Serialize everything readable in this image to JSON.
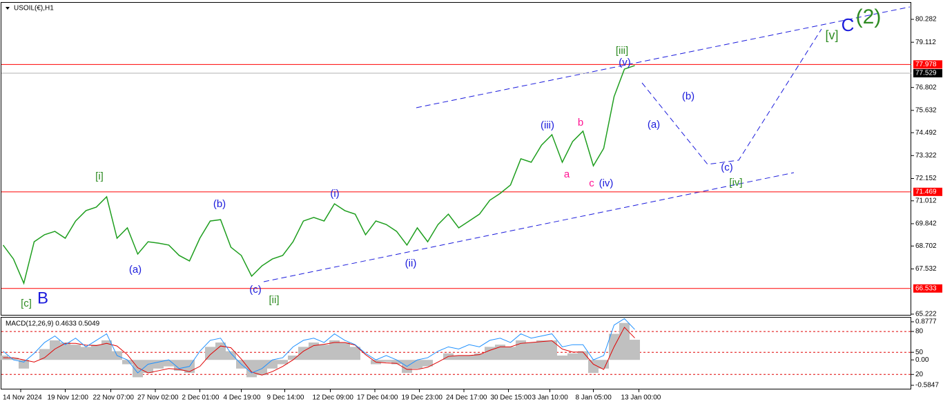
{
  "chart_data": [
    {
      "type": "line",
      "title": "USOIL(€),H1",
      "x": [
        0.3,
        1.3,
        2.3,
        3.3,
        4.3,
        5.3,
        6.3,
        7.3,
        8.3,
        9.3,
        10.3,
        11.3,
        12.3,
        13.3,
        14.3,
        15.3,
        16.3,
        17.3,
        18.3,
        19.3,
        20.3,
        21.3,
        22.3,
        23.3,
        24.3,
        25.3,
        26.3,
        27.3,
        28.3,
        29.3,
        30.3,
        31.3,
        32.3,
        33.3,
        34.3,
        35.3,
        36.3,
        37.3,
        38.3,
        39.3,
        40.3,
        41.3,
        42.3,
        43.3,
        44.3,
        45.3,
        46.3,
        47.3,
        48.3,
        49.3,
        50.3,
        51.3,
        52.3,
        53.3,
        54.3,
        55.3,
        56.3,
        57.3,
        58.3,
        59.3,
        60.3,
        61.3
      ],
      "series": [
        {
          "color": "#1e9e1e",
          "values": [
            68.75,
            68.04,
            66.8,
            68.92,
            69.28,
            69.45,
            69.1,
            69.98,
            70.51,
            70.69,
            71.22,
            69.1,
            69.63,
            68.29,
            68.92,
            68.85,
            68.75,
            68.22,
            67.94,
            69.1,
            69.98,
            70.05,
            68.64,
            68.22,
            67.16,
            67.69,
            68.04,
            68.22,
            68.92,
            69.98,
            70.16,
            69.98,
            70.86,
            70.51,
            70.33,
            69.28,
            69.98,
            69.8,
            69.45,
            68.75,
            69.63,
            68.92,
            69.8,
            70.33,
            69.63,
            69.98,
            70.33,
            71.04,
            71.39,
            71.82,
            73.16,
            72.98,
            73.86,
            74.39,
            72.98,
            74.04,
            74.57,
            72.8,
            73.69,
            76.33,
            77.74,
            77.92
          ]
        }
      ],
      "xlim": [
        0,
        88
      ],
      "ylim": [
        65.15,
        81.27
      ],
      "yticks": [
        80.282,
        79.112,
        76.802,
        75.632,
        74.492,
        73.322,
        72.152,
        71.012,
        69.842,
        68.702,
        67.532,
        65.222
      ],
      "xticks": [
        {
          "value": 2,
          "label": "14 Nov 2024"
        },
        {
          "value": 6.3,
          "label": "19 Nov 12:00"
        },
        {
          "value": 10.7,
          "label": "22 Nov 07:00"
        },
        {
          "value": 15,
          "label": "27 Nov 02:00"
        },
        {
          "value": 19.3,
          "label": "2 Dec 01:00"
        },
        {
          "value": 23.3,
          "label": "4 Dec 19:00"
        },
        {
          "value": 27.5,
          "label": "9 Dec 14:00"
        },
        {
          "value": 31.9,
          "label": "12 Dec 09:00"
        },
        {
          "value": 36.2,
          "label": "17 Dec 04:00"
        },
        {
          "value": 40.5,
          "label": "19 Dec 23:00"
        },
        {
          "value": 44.8,
          "label": "24 Dec 17:00"
        },
        {
          "value": 49.1,
          "label": "30 Dec 15:00"
        },
        {
          "value": 53.1,
          "label": "3 Jan 10:00"
        },
        {
          "value": 57.3,
          "label": "8 Jan 05:00"
        },
        {
          "value": 61.7,
          "label": "13 Jan 00:00"
        }
      ],
      "hlines": [
        77.978,
        71.469,
        66.533
      ],
      "hline_color": "#ff0000",
      "last_price": 77.529,
      "annotations": [
        {
          "text": "[c]",
          "color": "#2e8b22"
        },
        {
          "text": "B",
          "color": "#1a1adc"
        },
        {
          "text": "[i]",
          "color": "#2e8b22"
        },
        {
          "text": "(a)",
          "color": "#1a1adc"
        },
        {
          "text": "(b)",
          "color": "#1a1adc"
        },
        {
          "text": "(c)",
          "color": "#1a1adc"
        },
        {
          "text": "[ii]",
          "color": "#2e8b22"
        },
        {
          "text": "(i)",
          "color": "#1a1adc"
        },
        {
          "text": "(ii)",
          "color": "#1a1adc"
        },
        {
          "text": "(iii)",
          "color": "#1a1adc"
        },
        {
          "text": "a",
          "color": "#ff1493"
        },
        {
          "text": "b",
          "color": "#ff1493"
        },
        {
          "text": "c",
          "color": "#ff1493"
        },
        {
          "text": "(iv)",
          "color": "#1a1adc"
        },
        {
          "text": "[iii]",
          "color": "#2e8b22"
        },
        {
          "text": "(v)",
          "color": "#1a1adc"
        },
        {
          "text": "(a)",
          "color": "#1a1adc"
        },
        {
          "text": "(b)",
          "color": "#1a1adc"
        },
        {
          "text": "(c)",
          "color": "#1a1adc"
        },
        {
          "text": "[iv]",
          "color": "#2e8b22"
        },
        {
          "text": "[v]",
          "color": "#2e8b22"
        },
        {
          "text": "C",
          "color": "#1a1adc"
        },
        {
          "text": "(2)",
          "color": "#2e8b22"
        }
      ]
    },
    {
      "type": "macd",
      "title": "MACD(12,26,9) 0.4633 0.5049",
      "ylim": [
        -0.5847,
        0.8777
      ],
      "yticks": [
        0.8777,
        {
          "value": 0.654,
          "label": "80"
        },
        {
          "value": 0.175,
          "label": "50"
        },
        {
          "value": 0,
          "label": "0.00"
        },
        {
          "value": -0.335,
          "label": "20"
        },
        -0.5847
      ],
      "series": [
        {
          "color": "#c0c0c0",
          "values": [
            0.1,
            0.05,
            -0.2,
            0.0,
            0.25,
            0.45,
            0.4,
            0.35,
            0.3,
            0.35,
            0.45,
            0.2,
            -0.1,
            -0.4,
            -0.3,
            -0.2,
            -0.15,
            -0.25,
            -0.3,
            0.0,
            0.3,
            0.4,
            0.2,
            -0.2,
            -0.4,
            -0.35,
            -0.2,
            -0.1,
            0.1,
            0.3,
            0.4,
            0.35,
            0.45,
            0.4,
            0.3,
            0.0,
            -0.1,
            -0.05,
            -0.1,
            -0.3,
            -0.2,
            -0.15,
            0.0,
            0.15,
            0.1,
            0.1,
            0.15,
            0.3,
            0.35,
            0.3,
            0.45,
            0.4,
            0.45,
            0.45,
            0.1,
            0.15,
            0.2,
            -0.3,
            -0.2,
            0.6,
            0.85,
            0.4633
          ]
        },
        {
          "color": "#e00000",
          "values": [
            0.05,
            0.05,
            0.0,
            -0.05,
            0.05,
            0.25,
            0.38,
            0.38,
            0.34,
            0.33,
            0.38,
            0.32,
            0.12,
            -0.18,
            -0.3,
            -0.25,
            -0.2,
            -0.22,
            -0.27,
            -0.15,
            0.12,
            0.32,
            0.28,
            0.02,
            -0.28,
            -0.35,
            -0.27,
            -0.15,
            0.0,
            0.2,
            0.33,
            0.36,
            0.4,
            0.4,
            0.34,
            0.12,
            -0.05,
            -0.07,
            -0.08,
            -0.22,
            -0.22,
            -0.17,
            -0.05,
            0.08,
            0.1,
            0.1,
            0.12,
            0.22,
            0.3,
            0.3,
            0.38,
            0.4,
            0.42,
            0.44,
            0.25,
            0.18,
            0.18,
            -0.1,
            -0.22,
            0.3,
            0.75,
            0.5049
          ]
        },
        {
          "color": "#1e90ff",
          "values": [
            0.2,
            0.0,
            -0.05,
            0.15,
            0.4,
            0.55,
            0.35,
            0.5,
            0.3,
            0.45,
            0.6,
            0.1,
            0.0,
            -0.3,
            -0.1,
            -0.05,
            0.0,
            -0.2,
            -0.15,
            0.2,
            0.45,
            0.5,
            0.15,
            -0.1,
            -0.3,
            -0.2,
            0.0,
            0.05,
            0.3,
            0.45,
            0.5,
            0.4,
            0.6,
            0.45,
            0.35,
            0.15,
            0.0,
            0.1,
            0.0,
            -0.15,
            0.0,
            0.05,
            0.2,
            0.3,
            0.25,
            0.35,
            0.3,
            0.45,
            0.5,
            0.4,
            0.6,
            0.5,
            0.55,
            0.6,
            0.3,
            0.35,
            0.35,
            0.0,
            0.1,
            0.8,
            0.95,
            0.7
          ]
        }
      ]
    }
  ]
}
